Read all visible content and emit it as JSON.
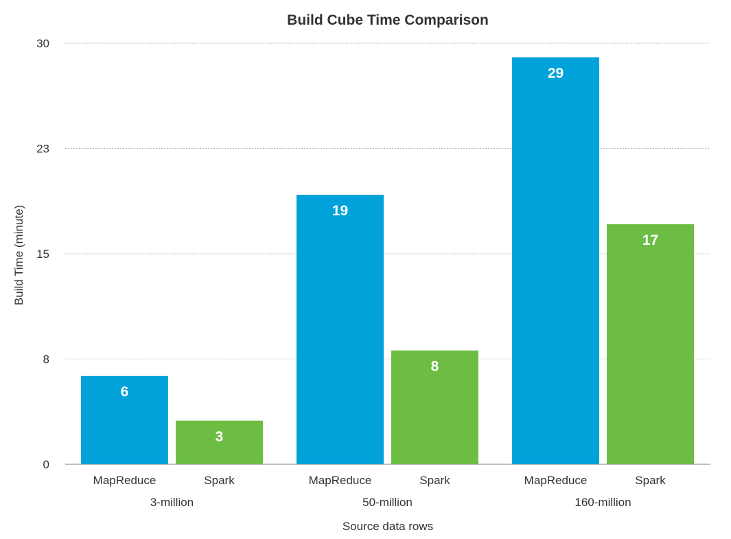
{
  "chart_data": {
    "type": "bar",
    "title": "Build Cube Time Comparison",
    "xlabel": "Source data rows",
    "ylabel": "Build Time (minute)",
    "ylim": [
      0,
      30
    ],
    "yticks": [
      {
        "value": 0,
        "label": "0"
      },
      {
        "value": 7.5,
        "label": "8"
      },
      {
        "value": 15,
        "label": "15"
      },
      {
        "value": 22.5,
        "label": "23"
      },
      {
        "value": 30,
        "label": "30"
      }
    ],
    "grid": true,
    "groups": [
      {
        "label": "3-million",
        "bars": [
          {
            "label": "MapReduce",
            "value": 6.3,
            "display": "6",
            "color": "#00a2d9"
          },
          {
            "label": "Spark",
            "value": 3.1,
            "display": "3",
            "color": "#6dbd45"
          }
        ]
      },
      {
        "label": "50-million",
        "bars": [
          {
            "label": "MapReduce",
            "value": 19.2,
            "display": "19",
            "color": "#00a2d9"
          },
          {
            "label": "Spark",
            "value": 8.1,
            "display": "8",
            "color": "#6dbd45"
          }
        ]
      },
      {
        "label": "160-million",
        "bars": [
          {
            "label": "MapReduce",
            "value": 29,
            "display": "29",
            "color": "#00a2d9"
          },
          {
            "label": "Spark",
            "value": 17.1,
            "display": "17",
            "color": "#6dbd45"
          }
        ]
      }
    ]
  }
}
